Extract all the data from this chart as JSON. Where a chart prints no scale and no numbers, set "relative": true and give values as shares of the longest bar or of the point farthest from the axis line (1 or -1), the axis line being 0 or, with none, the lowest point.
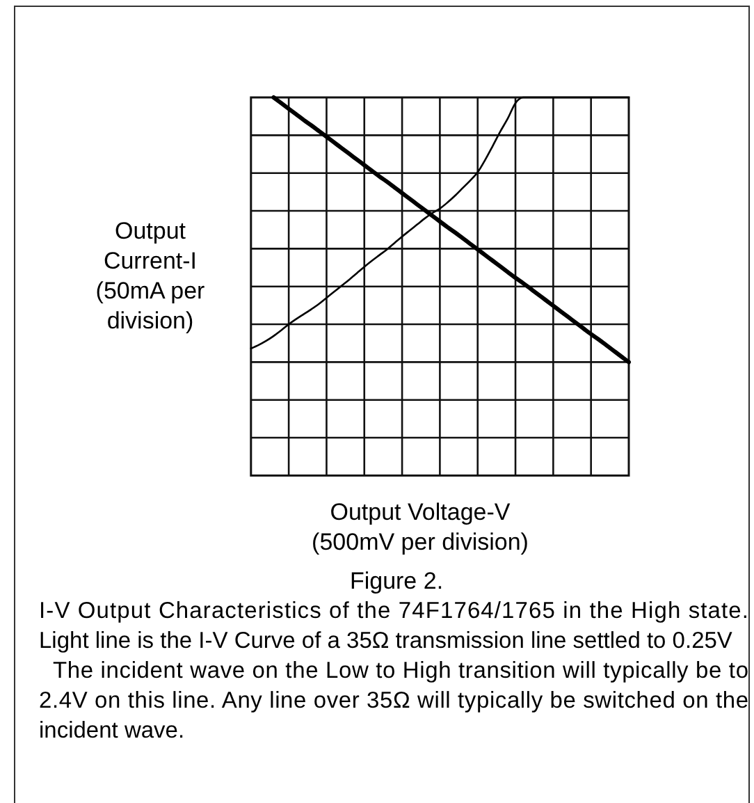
{
  "chart_data": {
    "type": "line",
    "relative": true,
    "grid": true,
    "xlabel": "Output Voltage-V (500mV per division)",
    "ylabel": "Output Current-I (50mA per division)",
    "annotations": [
      "Figure 2.",
      "I-V Output Characteristics of the 74F1764/1765 in the High state. Light line is the I-V Curve of a 35Ω transmission line settled to 0.25V",
      "The incident wave on the Low to High transition will typically be to 2.4V on this line. Any line over 35Ω will typically be switched on the incident wave."
    ],
    "categories": [
      null,
      null,
      null,
      null,
      null,
      null,
      null,
      null,
      null,
      null,
      null,
      null,
      null,
      null,
      null,
      null,
      null,
      null,
      null,
      null,
      null,
      null,
      null,
      null,
      null,
      null,
      null,
      null,
      null,
      null,
      null,
      null,
      null,
      null,
      null,
      null,
      null,
      null,
      null,
      null,
      null,
      null,
      null,
      null,
      null,
      null,
      null,
      null,
      null,
      null,
      null
    ],
    "series": [
      {
        "color": "#000000",
        "values": [
          null,
          null,
          null,
          1,
          0.985,
          0.97,
          0.955,
          0.94,
          0.926,
          0.911,
          0.896,
          0.881,
          0.866,
          0.851,
          0.836,
          0.821,
          0.806,
          0.791,
          0.777,
          0.762,
          0.747,
          0.732,
          0.717,
          0.702,
          0.687,
          0.672,
          0.657,
          0.643,
          0.628,
          0.613,
          0.598,
          0.583,
          0.568,
          0.553,
          0.538,
          0.523,
          0.509,
          0.494,
          0.479,
          0.464,
          0.449,
          0.434,
          0.419,
          0.404,
          0.389,
          0.374,
          0.36,
          0.345,
          0.33,
          0.315,
          0.3
        ]
      },
      {
        "color": "#000000",
        "values": [
          0.336,
          0.345,
          0.356,
          0.369,
          0.384,
          0.4,
          0.414,
          0.427,
          0.44,
          0.454,
          0.47,
          0.486,
          0.502,
          0.518,
          0.535,
          0.552,
          0.568,
          0.583,
          0.598,
          0.615,
          0.632,
          0.648,
          0.664,
          0.68,
          0.694,
          0.706,
          0.722,
          0.74,
          0.76,
          0.78,
          0.802,
          0.835,
          0.872,
          0.91,
          0.945,
          0.985,
          1,
          1,
          1,
          1,
          1,
          1,
          1,
          1,
          1,
          1,
          1,
          1,
          1,
          1,
          1
        ]
      }
    ]
  }
}
